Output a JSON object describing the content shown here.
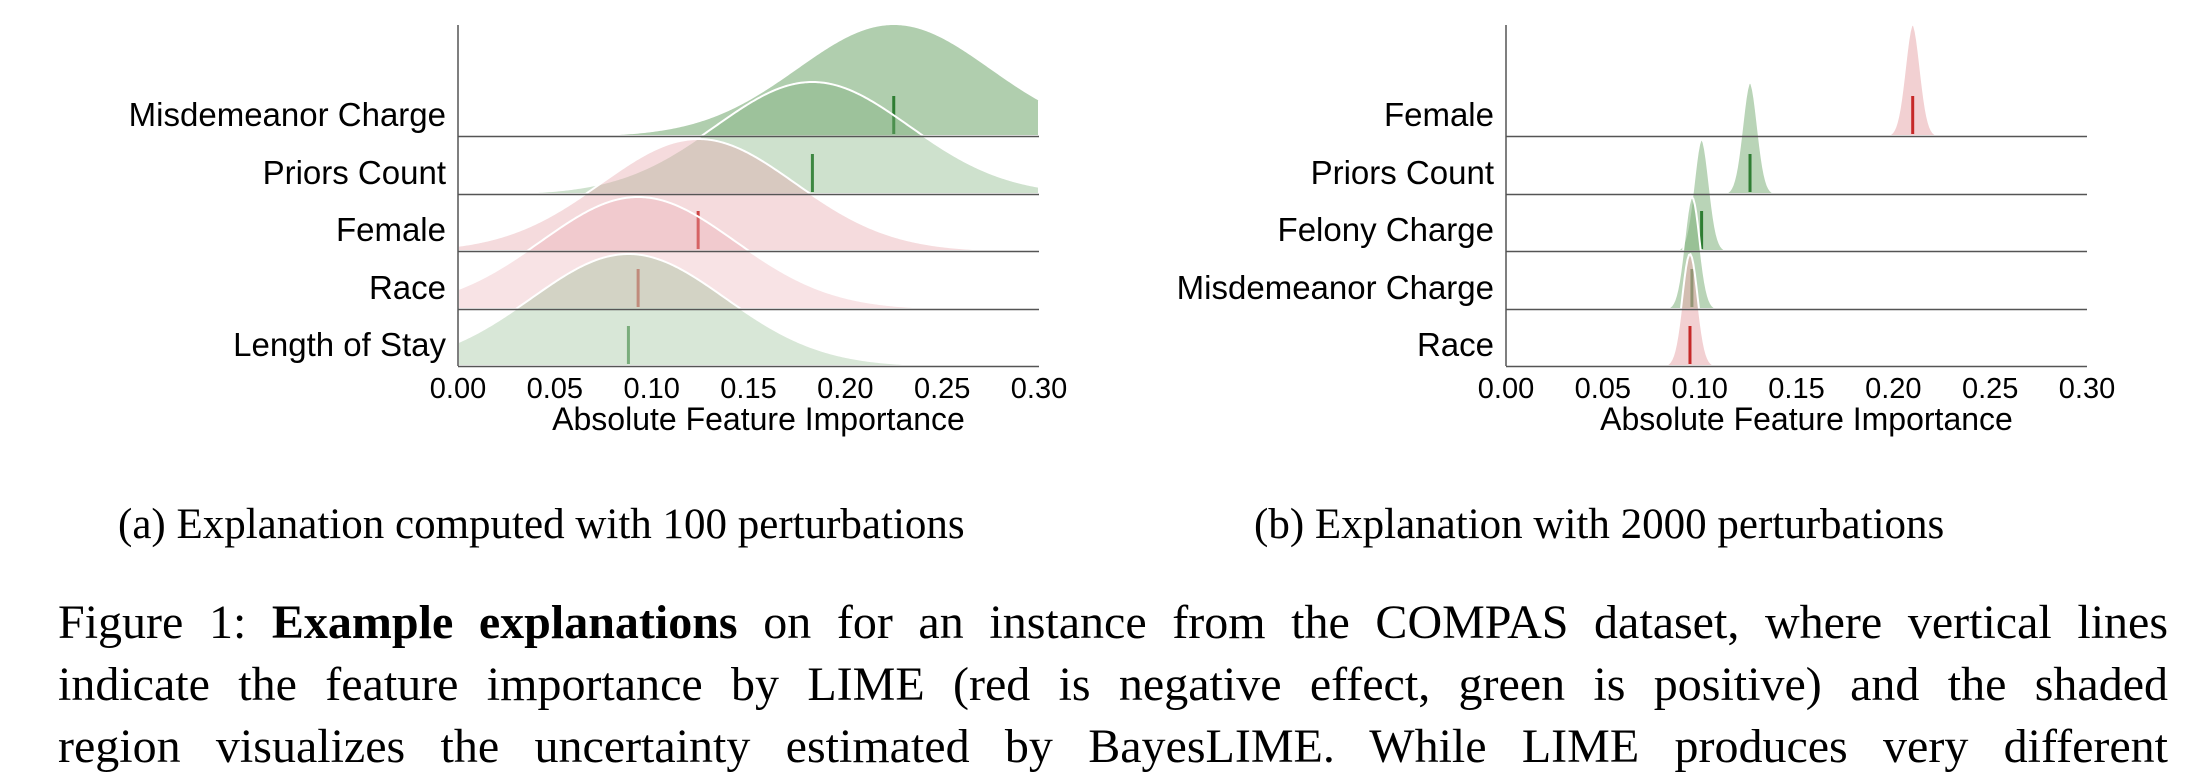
{
  "colors": {
    "positive_fill": "#7fb07c",
    "positive_line": "#2e7d32",
    "negative_fill": "#e8a9ad",
    "negative_line": "#c62828"
  },
  "chart_data": [
    {
      "type": "ridgeline",
      "caption": "(a) Explanation computed with 100 perturbations",
      "xlabel": "Absolute Feature Importance",
      "xlim": [
        0.0,
        0.3
      ],
      "xticks": [
        "0.00",
        "0.05",
        "0.10",
        "0.15",
        "0.20",
        "0.25",
        "0.30"
      ],
      "series": [
        {
          "name": "Misdemeanor Charge",
          "effect": "positive",
          "lime": 0.225,
          "mean": 0.225,
          "sd": 0.05
        },
        {
          "name": "Priors Count",
          "effect": "positive",
          "lime": 0.183,
          "mean": 0.183,
          "sd": 0.05
        },
        {
          "name": "Female",
          "effect": "negative",
          "lime": 0.124,
          "mean": 0.124,
          "sd": 0.05
        },
        {
          "name": "Race",
          "effect": "negative",
          "lime": 0.093,
          "mean": 0.093,
          "sd": 0.05
        },
        {
          "name": "Length of Stay",
          "effect": "positive",
          "lime": 0.088,
          "mean": 0.088,
          "sd": 0.05
        }
      ]
    },
    {
      "type": "ridgeline",
      "caption": "(b) Explanation with 2000 perturbations",
      "xlabel": "Absolute Feature Importance",
      "xlim": [
        0.0,
        0.3
      ],
      "xticks": [
        "0.00",
        "0.05",
        "0.10",
        "0.15",
        "0.20",
        "0.25",
        "0.30"
      ],
      "series": [
        {
          "name": "Female",
          "effect": "negative",
          "lime": 0.21,
          "mean": 0.21,
          "sd": 0.004
        },
        {
          "name": "Priors Count",
          "effect": "positive",
          "lime": 0.126,
          "mean": 0.126,
          "sd": 0.004
        },
        {
          "name": "Felony Charge",
          "effect": "positive",
          "lime": 0.101,
          "mean": 0.101,
          "sd": 0.004
        },
        {
          "name": "Misdemeanor Charge",
          "effect": "positive",
          "lime": 0.096,
          "mean": 0.096,
          "sd": 0.004
        },
        {
          "name": "Race",
          "effect": "negative",
          "lime": 0.095,
          "mean": 0.095,
          "sd": 0.004
        }
      ]
    }
  ],
  "figure_caption": {
    "lines": [
      {
        "prefix": "Figure 1: ",
        "bold": "Example explanations",
        "rest": " on for an instance from the COMPAS dataset, where vertical lines"
      },
      {
        "prefix": "",
        "bold": "",
        "rest": "indicate the feature importance by LIME (red is negative effect, green is positive) and the shaded"
      },
      {
        "prefix": "",
        "bold": "",
        "rest": "region visualizes the uncertainty estimated by BayesLIME. While LIME produces very different"
      }
    ]
  }
}
